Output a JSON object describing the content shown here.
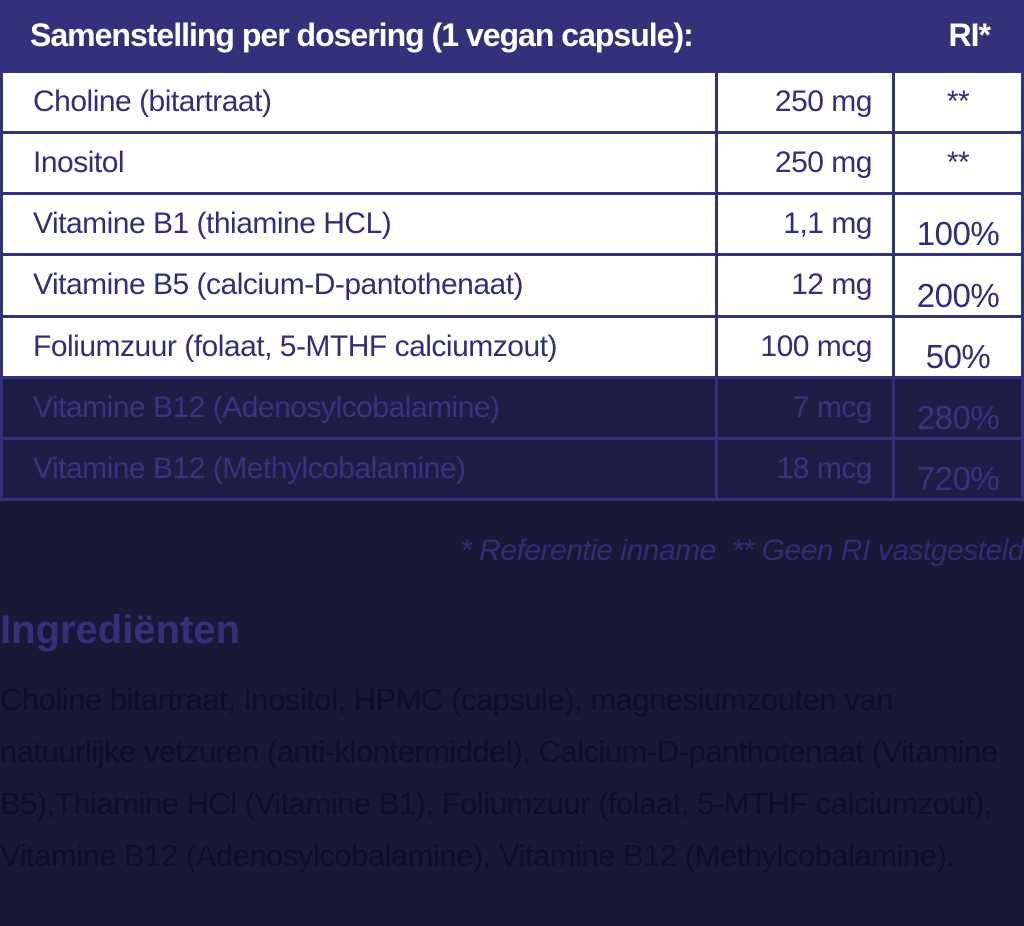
{
  "colors": {
    "navy_accent": "#32327b",
    "page_background": "#181837",
    "row_background": "#ffffff",
    "row_text": "#2f2f7a",
    "dark_row_background": "#1d1d45",
    "dark_row_text": "#353580",
    "header_text": "#ffffff",
    "body_text": "#0e0e2a"
  },
  "header": {
    "title": "Samenstelling per dosering (1 vegan capsule):",
    "ri_label": "RI*"
  },
  "rows": [
    {
      "name": "Choline (bitartraat)",
      "amount": "250 mg",
      "ri": "**"
    },
    {
      "name": "Inositol",
      "amount": "250 mg",
      "ri": "**"
    },
    {
      "name": "Vitamine B1 (thiamine HCL)",
      "amount": "1,1 mg",
      "ri": "100%"
    },
    {
      "name": "Vitamine B5 (calcium-D-pantothenaat)",
      "amount": "12 mg",
      "ri": "200%"
    },
    {
      "name": "Foliumzuur (folaat, 5-MTHF calciumzout)",
      "amount": "100 mcg",
      "ri": "50%"
    },
    {
      "name": "Vitamine B12 (Adenosylcobalamine)",
      "amount": "7 mcg",
      "ri": "280%"
    },
    {
      "name": "Vitamine B12 (Methylcobalamine)",
      "amount": "18 mcg",
      "ri": "720%"
    }
  ],
  "footnote": "* Referentie inname  ** Geen RI vastgesteld",
  "ingredients": {
    "heading": "Ingrediënten",
    "text": "Choline bitartraat, Inositol, HPMC (capsule), magnesiumzouten van natuurlijke vetzuren (anti-klontermiddel), Calcium-D-panthotenaat (Vitamine B5),Thiamine HCl (Vitamine B1), Foliumzuur (folaat, 5-MTHF calciumzout), Vitamine B12 (Adenosylcobalamine), Vitamine B12 (Methylcobalamine)."
  }
}
